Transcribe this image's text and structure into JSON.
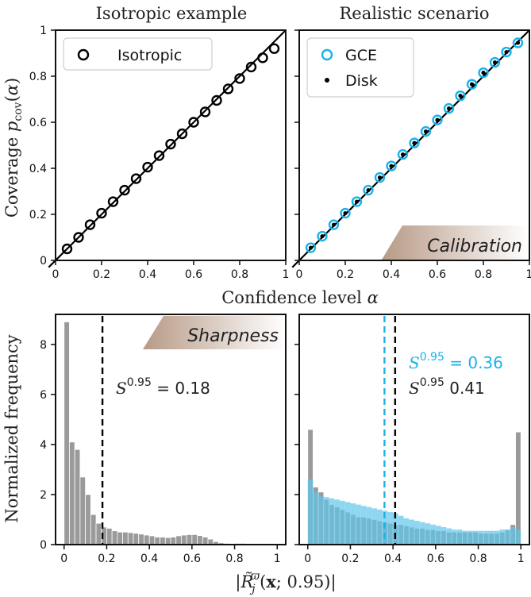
{
  "colors": {
    "black": "#000000",
    "gce": "#1ab2e8",
    "gray_bar": "#9a9a9a",
    "blue_bar": "#5fc6ea",
    "tag_grad_start": "#b79a86",
    "tag_grad_end": "#ffffff"
  },
  "figure": {
    "col_titles": [
      "Isotropic example",
      "Realistic scenario"
    ],
    "top_ylabel": "Coverage p_cov(α)",
    "top_xlabel": "Confidence level α",
    "bottom_ylabel": "Normalized frequency",
    "bottom_xlabel": "|R̃_j^ϖ(x; 0.95)|",
    "calibration_tag": "Calibration",
    "sharpness_tag": "Sharpness"
  },
  "chart_data": [
    {
      "type": "scatter",
      "panel": "top-left",
      "xlim": [
        0,
        1
      ],
      "ylim": [
        0,
        1
      ],
      "xticks": [
        0,
        0.2,
        0.4,
        0.6,
        0.8,
        1
      ],
      "yticks": [
        0,
        0.2,
        0.4,
        0.6,
        0.8,
        1
      ],
      "xtick_labels": [
        "0",
        "0.2",
        "0.4",
        "0.6",
        "0.8",
        "1"
      ],
      "ytick_labels": [
        "0",
        "0.2",
        "0.4",
        "0.6",
        "0.8",
        "1"
      ],
      "diagonal": true,
      "legend": {
        "placement": "top-left",
        "entries": [
          "Isotropic"
        ]
      },
      "series": [
        {
          "name": "Isotropic",
          "marker": "open-circle",
          "x": [
            0.05,
            0.1,
            0.15,
            0.2,
            0.25,
            0.3,
            0.35,
            0.4,
            0.45,
            0.5,
            0.55,
            0.6,
            0.65,
            0.7,
            0.75,
            0.8,
            0.85,
            0.9,
            0.95
          ],
          "y": [
            0.05,
            0.1,
            0.155,
            0.205,
            0.255,
            0.305,
            0.355,
            0.405,
            0.455,
            0.505,
            0.55,
            0.6,
            0.645,
            0.695,
            0.745,
            0.79,
            0.84,
            0.88,
            0.92
          ]
        }
      ]
    },
    {
      "type": "scatter",
      "panel": "top-right",
      "xlim": [
        0,
        1
      ],
      "ylim": [
        0,
        1
      ],
      "xticks": [
        0,
        0.2,
        0.4,
        0.6,
        0.8,
        1
      ],
      "yticks": [
        0,
        0.2,
        0.4,
        0.6,
        0.8,
        1
      ],
      "xtick_labels": [
        "0",
        "0.2",
        "0.4",
        "0.6",
        "0.8",
        "1"
      ],
      "diagonal": true,
      "legend": {
        "placement": "top-left",
        "entries": [
          "GCE",
          "Disk"
        ]
      },
      "series": [
        {
          "name": "GCE",
          "marker": "open-circle",
          "x": [
            0.05,
            0.1,
            0.15,
            0.2,
            0.25,
            0.3,
            0.35,
            0.4,
            0.45,
            0.5,
            0.55,
            0.6,
            0.65,
            0.7,
            0.75,
            0.8,
            0.85,
            0.9,
            0.95
          ],
          "y": [
            0.055,
            0.105,
            0.155,
            0.205,
            0.255,
            0.305,
            0.36,
            0.41,
            0.46,
            0.51,
            0.56,
            0.61,
            0.66,
            0.715,
            0.765,
            0.815,
            0.86,
            0.905,
            0.945
          ]
        },
        {
          "name": "Disk",
          "marker": "dot",
          "x": [
            0.05,
            0.1,
            0.15,
            0.2,
            0.25,
            0.3,
            0.35,
            0.4,
            0.45,
            0.5,
            0.55,
            0.6,
            0.65,
            0.7,
            0.75,
            0.8,
            0.85,
            0.9,
            0.95
          ],
          "y": [
            0.055,
            0.105,
            0.155,
            0.205,
            0.255,
            0.305,
            0.36,
            0.41,
            0.46,
            0.51,
            0.56,
            0.61,
            0.66,
            0.715,
            0.765,
            0.815,
            0.86,
            0.905,
            0.945
          ]
        }
      ]
    },
    {
      "type": "bar",
      "panel": "bottom-left",
      "xlim": [
        -0.04,
        1.04
      ],
      "ylim": [
        0,
        9.2
      ],
      "xticks": [
        0,
        0.2,
        0.4,
        0.6,
        0.8,
        1
      ],
      "yticks": [
        0,
        2,
        4,
        6,
        8
      ],
      "xtick_labels": [
        "0",
        "0.2",
        "0.4",
        "0.6",
        "0.8",
        "1"
      ],
      "ytick_labels": [
        "0",
        "2",
        "4",
        "6",
        "8"
      ],
      "bin_width": 0.025,
      "bin_start": 0,
      "series": [
        {
          "name": "",
          "values": [
            8.9,
            4.1,
            3.8,
            2.7,
            2.0,
            1.2,
            0.85,
            0.7,
            0.65,
            0.55,
            0.5,
            0.5,
            0.48,
            0.45,
            0.42,
            0.38,
            0.35,
            0.3,
            0.3,
            0.28,
            0.3,
            0.35,
            0.38,
            0.4,
            0.4,
            0.36,
            0.3,
            0.22,
            0.12,
            0.07,
            0.05,
            0.04,
            0.05,
            0.05,
            0.03,
            0.02,
            0.01,
            0.01,
            0.005,
            0.0
          ]
        }
      ],
      "vlines": [
        {
          "x": 0.18,
          "color": "#000000"
        }
      ],
      "annotations": [
        {
          "text_sym": "S",
          "sup": "0.95",
          "value_text": "= 0.18",
          "color": "#222222"
        }
      ]
    },
    {
      "type": "bar",
      "panel": "bottom-right",
      "xlim": [
        -0.04,
        1.04
      ],
      "ylim": [
        0,
        9.2
      ],
      "xticks": [
        0,
        0.2,
        0.4,
        0.6,
        0.8,
        1
      ],
      "xtick_labels": [
        "0",
        "0.2",
        "0.4",
        "0.6",
        "0.8",
        "1"
      ],
      "yticks": [
        0,
        2,
        4,
        6,
        8
      ],
      "bin_width": 0.025,
      "bin_start": 0,
      "series": [
        {
          "name": "Disk",
          "values": [
            4.6,
            2.3,
            2.1,
            1.8,
            1.6,
            1.5,
            1.4,
            1.3,
            1.2,
            1.1,
            1.1,
            1.05,
            1.0,
            0.95,
            0.9,
            0.85,
            0.8,
            0.8,
            0.75,
            0.7,
            0.65,
            0.65,
            0.6,
            0.6,
            0.55,
            0.55,
            0.5,
            0.5,
            0.5,
            0.5,
            0.5,
            0.5,
            0.45,
            0.45,
            0.45,
            0.45,
            0.5,
            0.6,
            0.8,
            4.5
          ]
        },
        {
          "name": "GCE",
          "values": [
            2.6,
            2.1,
            1.95,
            1.9,
            1.85,
            1.8,
            1.75,
            1.7,
            1.65,
            1.6,
            1.55,
            1.5,
            1.45,
            1.4,
            1.35,
            1.3,
            1.25,
            1.15,
            1.05,
            1.0,
            0.95,
            0.9,
            0.85,
            0.8,
            0.75,
            0.7,
            0.65,
            0.6,
            0.6,
            0.55,
            0.55,
            0.55,
            0.55,
            0.55,
            0.55,
            0.55,
            0.6,
            0.6,
            0.7,
            0.6
          ]
        }
      ],
      "vlines": [
        {
          "x": 0.36,
          "color": "#1ab2e8"
        },
        {
          "x": 0.41,
          "color": "#000000"
        }
      ],
      "annotations": [
        {
          "text_sym": "S",
          "sup": "0.95",
          "value_text": "= 0.36",
          "color": "#1ab2e8"
        },
        {
          "text_sym": "S",
          "sup": "0.95",
          "value_text": "0.41",
          "color": "#222222"
        }
      ]
    }
  ]
}
